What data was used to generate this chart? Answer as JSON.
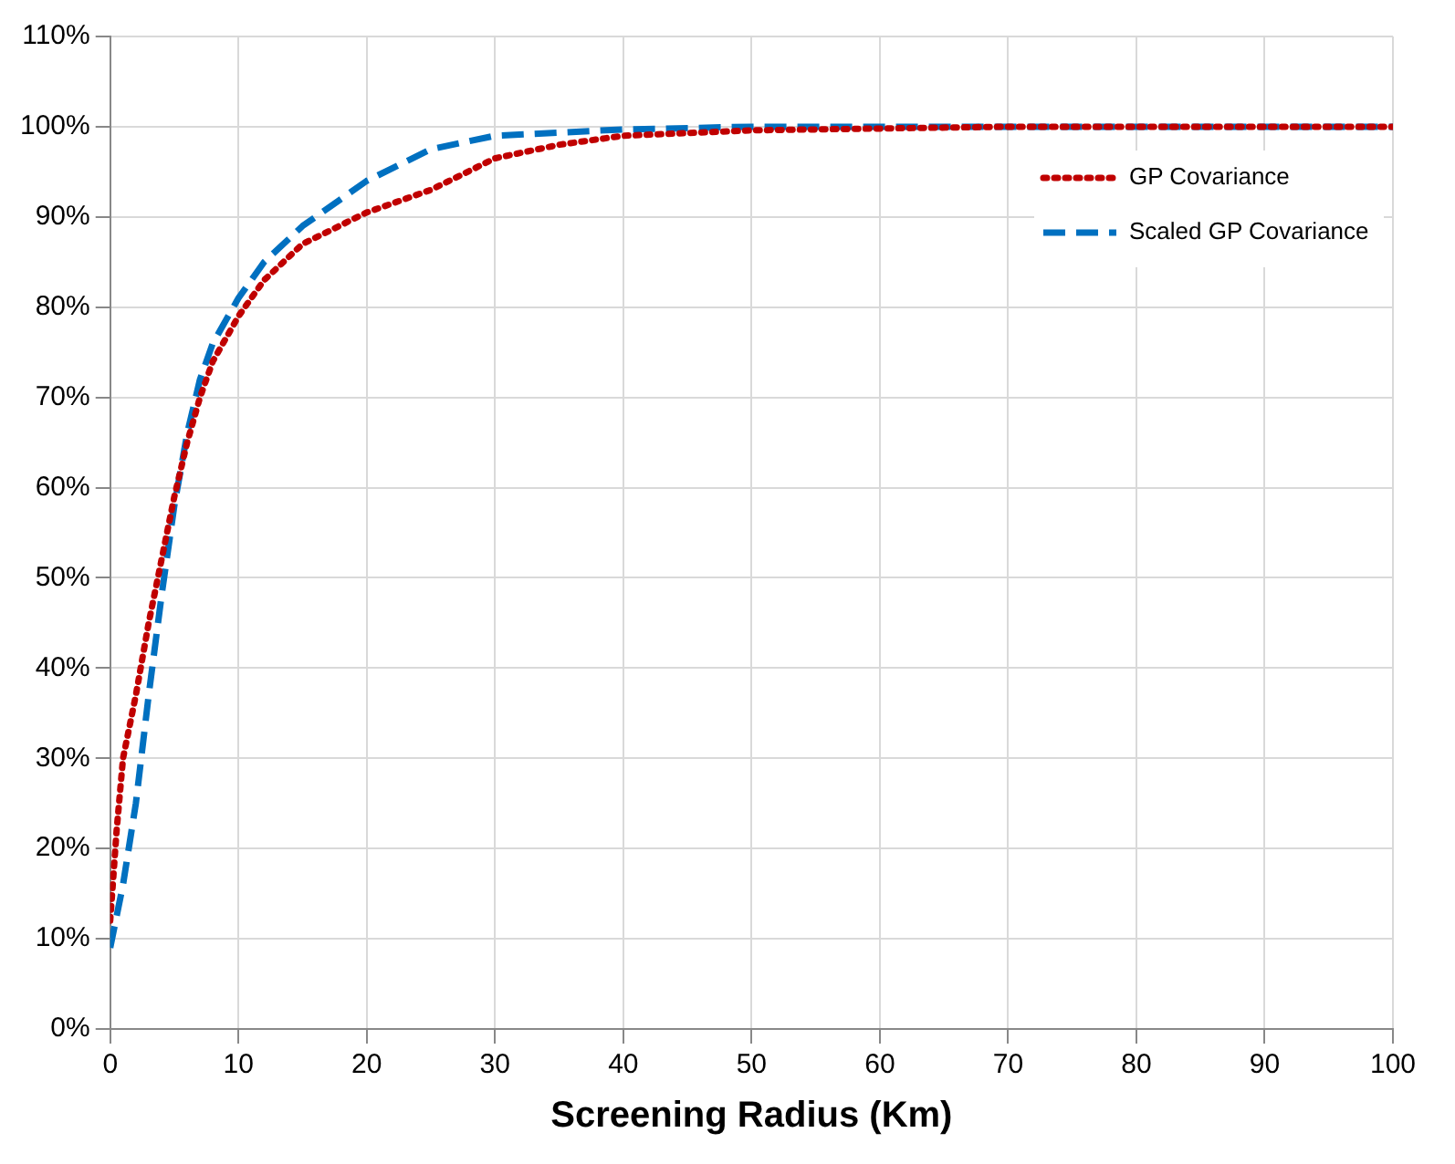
{
  "chart_data": {
    "type": "line",
    "xlabel": "Screening Radius (Km)",
    "xlim": [
      0,
      100
    ],
    "xticks": [
      0,
      10,
      20,
      30,
      40,
      50,
      60,
      70,
      80,
      90,
      100
    ],
    "ylim": [
      0,
      110
    ],
    "yticks": [
      {
        "value": 0,
        "label": "0%"
      },
      {
        "value": 10,
        "label": "10%"
      },
      {
        "value": 20,
        "label": "20%"
      },
      {
        "value": 30,
        "label": "30%"
      },
      {
        "value": 40,
        "label": "40%"
      },
      {
        "value": 50,
        "label": "50%"
      },
      {
        "value": 60,
        "label": "60%"
      },
      {
        "value": 70,
        "label": "70%"
      },
      {
        "value": 80,
        "label": "80%"
      },
      {
        "value": 90,
        "label": "90%"
      },
      {
        "value": 100,
        "label": "100%"
      },
      {
        "value": 110,
        "label": "110%"
      }
    ],
    "grid": true,
    "legend": "top right",
    "marker": "none",
    "series": [
      {
        "name": "GP Covariance",
        "color": "#c00000",
        "line_style": "dotted",
        "x": [
          0,
          0.5,
          1,
          2,
          3,
          4,
          5,
          6,
          7,
          8,
          10,
          12,
          15,
          20,
          25,
          30,
          35,
          40,
          50,
          60,
          70,
          80,
          90,
          100
        ],
        "values": [
          12,
          22,
          30,
          37,
          45,
          52,
          59,
          65,
          70,
          74,
          79,
          83,
          87,
          90.5,
          93,
          96.5,
          98,
          99,
          99.6,
          99.8,
          100,
          100,
          100,
          100
        ]
      },
      {
        "name": "Scaled GP Covariance",
        "color": "#0070c0",
        "line_style": "dashed",
        "x": [
          0,
          1,
          2,
          3,
          4,
          5,
          6,
          7,
          8,
          10,
          12,
          15,
          20,
          25,
          30,
          40,
          50,
          60,
          70,
          80,
          90,
          100
        ],
        "values": [
          9,
          16,
          25,
          37,
          48,
          58,
          66,
          72,
          76,
          81,
          85,
          89,
          94,
          97.5,
          99,
          99.7,
          100,
          100,
          100,
          100,
          100,
          100
        ]
      }
    ]
  }
}
